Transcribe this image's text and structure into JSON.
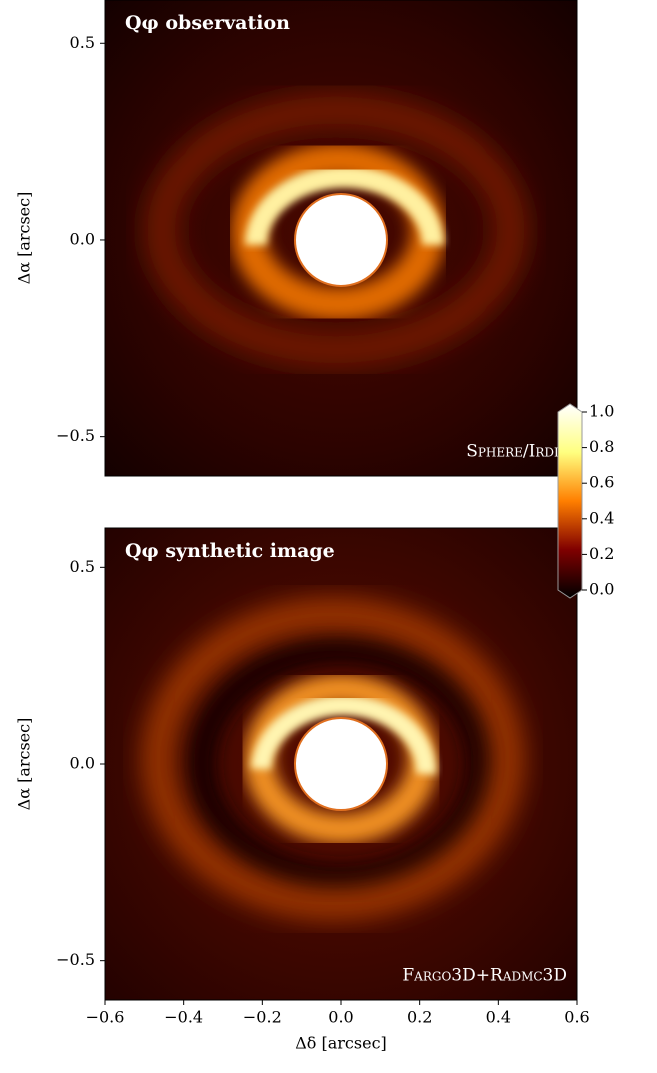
{
  "chart_data": [
    {
      "type": "image",
      "title": "Qφ observation",
      "label": "Sphere/Irdis",
      "ylabel": "Δα [arcsec]",
      "xlim": [
        -0.6,
        0.6
      ],
      "ylim": [
        -0.6,
        0.61
      ],
      "yticks": [
        {
          "value": -0.5,
          "label": "−0.5"
        },
        {
          "value": 0,
          "label": "0.0"
        },
        {
          "value": 0.5,
          "label": "0.5"
        }
      ]
    },
    {
      "type": "image",
      "title": "Qφ synthetic image",
      "label": "Fargo3D+Radmc3D",
      "ylabel": "Δα [arcsec]",
      "xlabel": "Δδ [arcsec]",
      "xlim": [
        -0.6,
        0.6
      ],
      "ylim": [
        -0.6,
        0.6
      ],
      "yticks": [
        {
          "value": -0.5,
          "label": "−0.5"
        },
        {
          "value": 0,
          "label": "0.0"
        },
        {
          "value": 0.5,
          "label": "0.5"
        }
      ],
      "xticks": [
        {
          "value": -0.6,
          "label": "−0.6"
        },
        {
          "value": -0.4,
          "label": "−0.4"
        },
        {
          "value": -0.2,
          "label": "−0.2"
        },
        {
          "value": 0,
          "label": "0.0"
        },
        {
          "value": 0.2,
          "label": "0.2"
        },
        {
          "value": 0.4,
          "label": "0.4"
        },
        {
          "value": 0.6,
          "label": "0.6"
        }
      ]
    }
  ],
  "colorbar": {
    "lim": [
      0,
      1
    ],
    "ticks": [
      {
        "value": 0,
        "label": "0.0"
      },
      {
        "value": 0.2,
        "label": "0.2"
      },
      {
        "value": 0.4,
        "label": "0.4"
      },
      {
        "value": 0.6,
        "label": "0.6"
      },
      {
        "value": 0.8,
        "label": "0.8"
      },
      {
        "value": 1,
        "label": "1.0"
      }
    ]
  }
}
